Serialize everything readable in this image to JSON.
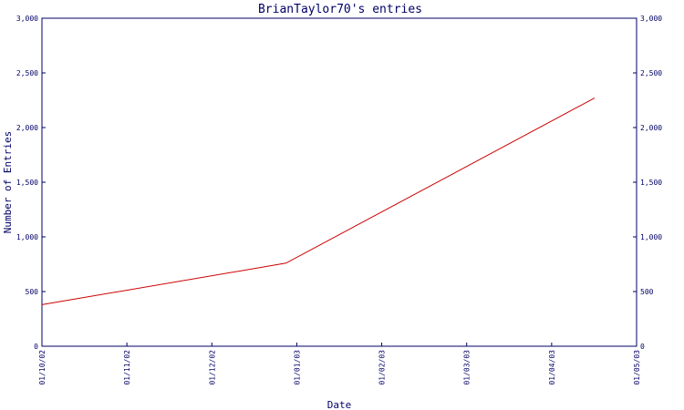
{
  "chart_data": {
    "type": "line",
    "title": "BrianTaylor70's entries",
    "xlabel": "Date",
    "ylabel": "Number of Entries",
    "x_ticks": [
      "01/10/02",
      "01/11/02",
      "01/12/02",
      "01/01/03",
      "01/02/03",
      "01/03/03",
      "01/04/03",
      "01/05/03"
    ],
    "y_ticks": [
      "0",
      "500",
      "1,000",
      "1,500",
      "2,000",
      "2,500",
      "3,000"
    ],
    "xlim": [
      "2002-10-01",
      "2003-05-01"
    ],
    "ylim": [
      0,
      3000
    ],
    "grid": false,
    "series": [
      {
        "color": "#cc0000",
        "x": [
          "2002-10-01",
          "2002-12-27",
          "2003-04-16"
        ],
        "y": [
          380,
          760,
          2270
        ]
      }
    ]
  },
  "colors": {
    "axis": "#000066",
    "line": "#cc0000",
    "background": "#ffffff"
  }
}
